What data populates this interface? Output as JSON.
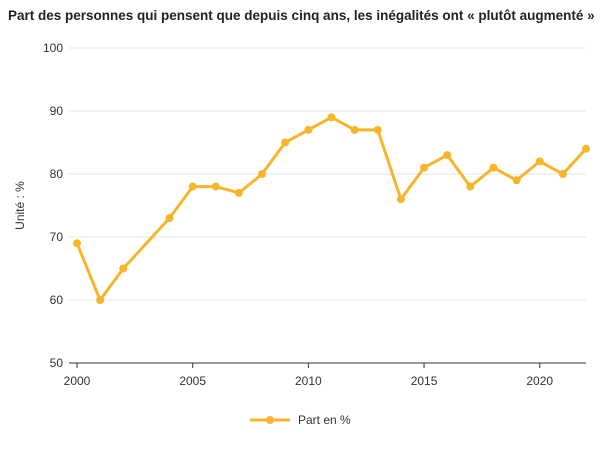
{
  "chart_data": {
    "type": "line",
    "title": "Part des personnes qui pensent que depuis cinq ans, les inégalités ont « plutôt augmenté »",
    "ylabel": "Unité : %",
    "xlabel": "",
    "ylim": [
      50,
      100
    ],
    "xlim": [
      2000,
      2022
    ],
    "yticks": [
      50,
      60,
      70,
      80,
      90,
      100
    ],
    "xticks": [
      2000,
      2005,
      2010,
      2015,
      2020
    ],
    "grid": "horizontal",
    "legend_position": "bottom",
    "colors": {
      "series": "#f7b52c"
    },
    "series": [
      {
        "name": "Part en %",
        "x": [
          2000,
          2001,
          2002,
          2004,
          2005,
          2006,
          2007,
          2008,
          2009,
          2010,
          2011,
          2012,
          2013,
          2014,
          2015,
          2016,
          2017,
          2018,
          2019,
          2020,
          2021,
          2022
        ],
        "values": [
          69,
          60,
          65,
          73,
          78,
          78,
          77,
          80,
          85,
          87,
          89,
          87,
          87,
          76,
          81,
          83,
          78,
          81,
          79,
          82,
          80,
          84
        ]
      }
    ]
  }
}
